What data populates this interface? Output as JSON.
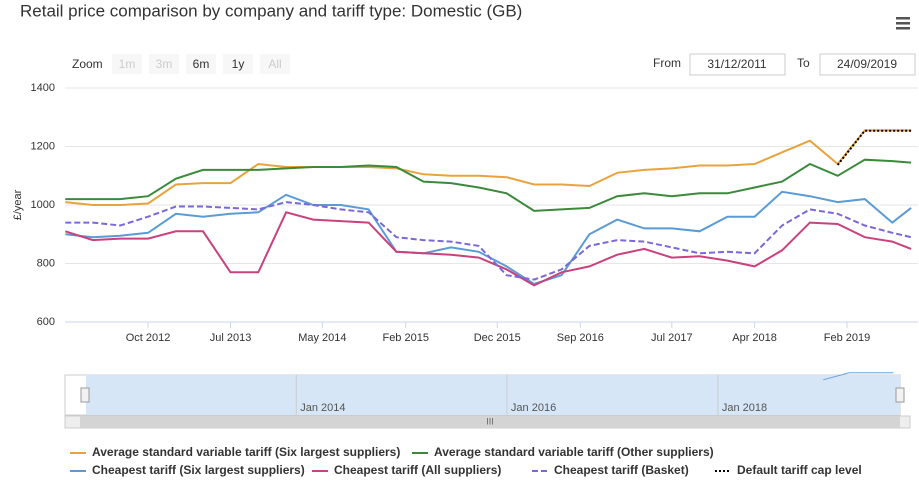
{
  "chart_data": {
    "type": "line",
    "title": "Retail price comparison by company and tariff type: Domestic (GB)",
    "y_label": "£/year",
    "zoom_label": "Zoom",
    "zoom_buttons": [
      "1m",
      "3m",
      "6m",
      "1y",
      "All"
    ],
    "from_label": "From",
    "from_value": "31/12/2011",
    "to_label": "To",
    "to_value": "24/09/2019",
    "x": [
      "2012-01",
      "2012-04",
      "2012-07",
      "2012-10",
      "2013-01",
      "2013-04",
      "2013-07",
      "2013-10",
      "2014-01",
      "2014-04",
      "2014-07",
      "2014-10",
      "2015-01",
      "2015-04",
      "2015-07",
      "2015-10",
      "2016-01",
      "2016-04",
      "2016-07",
      "2016-10",
      "2017-01",
      "2017-04",
      "2017-07",
      "2017-10",
      "2018-01",
      "2018-04",
      "2018-07",
      "2018-10",
      "2019-01",
      "2019-04",
      "2019-07",
      "2019-09"
    ],
    "xlim": [
      "2011-12-31",
      "2019-09-24"
    ],
    "xticks": [
      {
        "value": "2012-10",
        "label": "Oct 2012"
      },
      {
        "value": "2013-07",
        "label": "Jul 2013"
      },
      {
        "value": "2014-05",
        "label": "May 2014"
      },
      {
        "value": "2015-02",
        "label": "Feb 2015"
      },
      {
        "value": "2015-12",
        "label": "Dec 2015"
      },
      {
        "value": "2016-09",
        "label": "Sep 2016"
      },
      {
        "value": "2017-07",
        "label": "Jul 2017"
      },
      {
        "value": "2018-04",
        "label": "Apr 2018"
      },
      {
        "value": "2019-02",
        "label": "Feb 2019"
      }
    ],
    "navigator_ticks": [
      {
        "value": "2014-01",
        "label": "Jan 2014"
      },
      {
        "value": "2016-01",
        "label": "Jan 2016"
      },
      {
        "value": "2018-01",
        "label": "Jan 2018"
      }
    ],
    "ylim": [
      600,
      1400
    ],
    "yticks": [
      600,
      800,
      1000,
      1200,
      1400
    ],
    "grid": true,
    "series": [
      {
        "name": "Average standard variable tariff (Six largest suppliers)",
        "color": "#e8a33d",
        "dash": "none",
        "values": [
          1010,
          1000,
          1000,
          1005,
          1070,
          1075,
          1075,
          1140,
          1130,
          1130,
          1130,
          1130,
          1125,
          1105,
          1100,
          1100,
          1095,
          1070,
          1070,
          1065,
          1110,
          1120,
          1125,
          1135,
          1135,
          1140,
          1180,
          1220,
          1140,
          1255,
          1255,
          1255
        ]
      },
      {
        "name": "Average standard variable tariff (Other suppliers)",
        "color": "#3b8a3b",
        "dash": "none",
        "values": [
          1020,
          1020,
          1020,
          1030,
          1090,
          1120,
          1120,
          1120,
          1125,
          1130,
          1130,
          1135,
          1130,
          1080,
          1075,
          1060,
          1040,
          980,
          985,
          990,
          1030,
          1040,
          1030,
          1040,
          1040,
          1060,
          1080,
          1140,
          1100,
          1155,
          1150,
          1145
        ]
      },
      {
        "name": "Cheapest tariff (Six largest suppliers)",
        "color": "#5b9bd5",
        "dash": "none",
        "values": [
          900,
          890,
          895,
          905,
          970,
          960,
          970,
          975,
          1035,
          1000,
          1000,
          985,
          840,
          835,
          855,
          840,
          790,
          730,
          760,
          900,
          950,
          920,
          920,
          910,
          960,
          960,
          1045,
          1030,
          1010,
          1020,
          940,
          990
        ]
      },
      {
        "name": "Cheapest tariff (All suppliers)",
        "color": "#c9417d",
        "dash": "none",
        "values": [
          910,
          880,
          885,
          885,
          910,
          910,
          770,
          770,
          975,
          950,
          945,
          940,
          840,
          835,
          830,
          820,
          780,
          725,
          770,
          790,
          830,
          850,
          820,
          825,
          810,
          790,
          845,
          940,
          935,
          890,
          875,
          850
        ]
      },
      {
        "name": "Cheapest tariff (Basket)",
        "color": "#7b68d8",
        "dash": "6,3",
        "values": [
          940,
          940,
          930,
          960,
          995,
          995,
          990,
          985,
          1010,
          1000,
          985,
          975,
          890,
          880,
          875,
          860,
          760,
          745,
          780,
          860,
          880,
          875,
          855,
          835,
          840,
          835,
          930,
          985,
          970,
          930,
          905,
          890
        ]
      },
      {
        "name": "Default tariff cap level",
        "color": "#000000",
        "dash": "2,2",
        "values": [
          null,
          null,
          null,
          null,
          null,
          null,
          null,
          null,
          null,
          null,
          null,
          null,
          null,
          null,
          null,
          null,
          null,
          null,
          null,
          null,
          null,
          null,
          null,
          null,
          null,
          null,
          null,
          null,
          1137,
          1254,
          1254,
          1254
        ]
      }
    ]
  }
}
